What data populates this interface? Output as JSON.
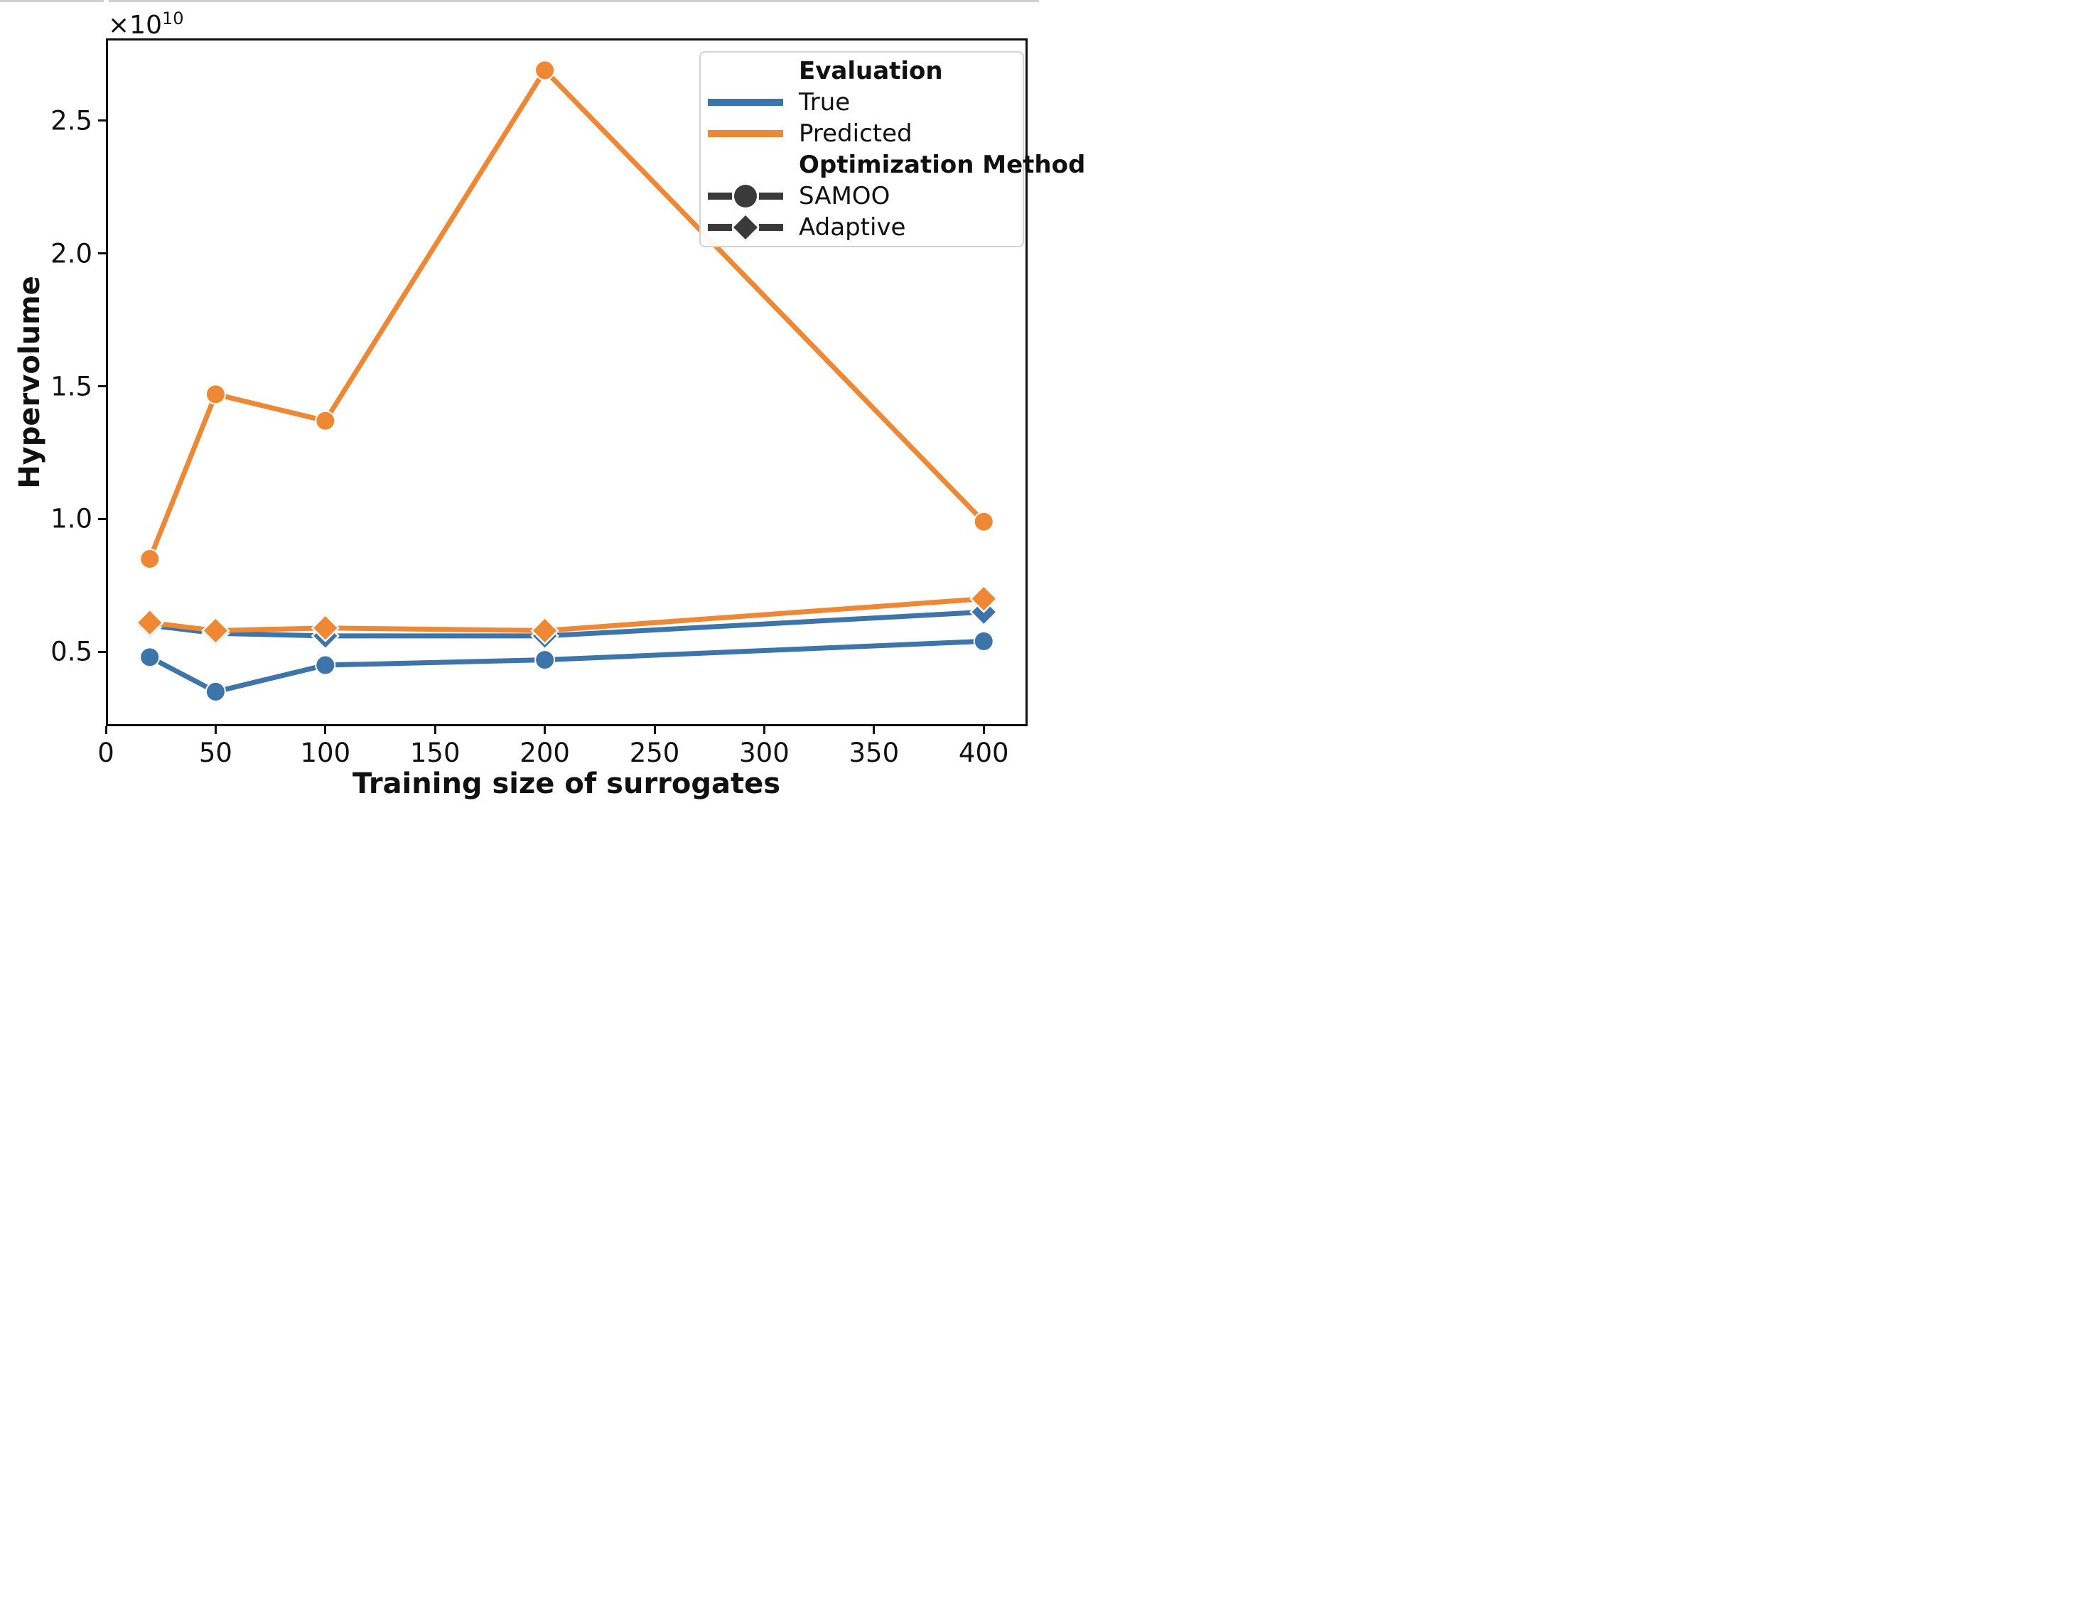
{
  "figure": {
    "offset_text": {
      "base": "×10",
      "exponent": "10"
    },
    "colors": {
      "true_blue": "#3d74a9",
      "predicted_orange": "#ee8835",
      "method_dark": "#3a3a3a",
      "spine": "#111111",
      "legend_border": "#d3d3d3",
      "background": "#ffffff"
    }
  },
  "legend": {
    "sections": [
      {
        "header": "Evaluation",
        "items": [
          {
            "label": "True",
            "swatch": "line",
            "color": "#3d74a9"
          },
          {
            "label": "Predicted",
            "swatch": "line",
            "color": "#ee8835"
          }
        ]
      },
      {
        "header": "Optimization Method",
        "items": [
          {
            "label": "SAMOO",
            "swatch": "marker",
            "marker": "circle"
          },
          {
            "label": "Adaptive",
            "swatch": "marker",
            "marker": "diamond"
          }
        ]
      }
    ]
  },
  "chart_data": {
    "type": "line",
    "title": "",
    "xlabel": "Training size of surrogates",
    "ylabel": "Hypervolume",
    "y_scale_label": "×10¹⁰",
    "x": [
      20,
      50,
      100,
      200,
      400
    ],
    "series": [
      {
        "name": "True-SAMOO",
        "evaluation": "True",
        "method": "SAMOO",
        "color": "#3d74a9",
        "marker": "circle",
        "values_e10": [
          0.48,
          0.35,
          0.45,
          0.47,
          0.54
        ]
      },
      {
        "name": "True-Adaptive",
        "evaluation": "True",
        "method": "Adaptive",
        "color": "#3d74a9",
        "marker": "diamond",
        "values_e10": [
          0.6,
          0.57,
          0.56,
          0.56,
          0.65
        ]
      },
      {
        "name": "Predicted-SAMOO",
        "evaluation": "Predicted",
        "method": "SAMOO",
        "color": "#ee8835",
        "marker": "circle",
        "values_e10": [
          0.85,
          1.47,
          1.37,
          2.69,
          0.99
        ]
      },
      {
        "name": "Predicted-Adaptive",
        "evaluation": "Predicted",
        "method": "Adaptive",
        "color": "#ee8835",
        "marker": "diamond",
        "values_e10": [
          0.61,
          0.58,
          0.59,
          0.58,
          0.7
        ]
      }
    ],
    "x_ticks": [
      0,
      50,
      100,
      150,
      200,
      250,
      300,
      350,
      400
    ],
    "y_ticks": [
      0.5,
      1.0,
      1.5,
      2.0,
      2.5
    ],
    "y_tick_labels": [
      "0.5",
      "1.0",
      "1.5",
      "2.0",
      "2.5"
    ],
    "xlim": [
      0,
      420
    ],
    "ylim_e10": [
      0.22,
      2.81
    ],
    "grid": false,
    "legend_position": "upper right"
  }
}
